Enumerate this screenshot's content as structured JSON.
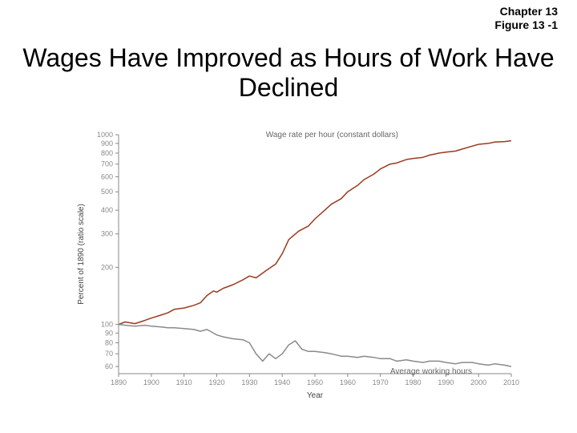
{
  "header": {
    "chapter": "Chapter 13",
    "figure": "Figure 13 -1"
  },
  "title": "Wages Have Improved as Hours of Work Have Declined",
  "chart": {
    "type": "line",
    "background_color": "#ffffff",
    "axis_color": "#888888",
    "tick_color": "#888888",
    "tick_font_size": 9,
    "xlabel": "Year",
    "ylabel": "Percent of 1890 (ratio scale)",
    "xlim": [
      1890,
      2010
    ],
    "xticks": [
      1890,
      1900,
      1910,
      1920,
      1930,
      1940,
      1950,
      1960,
      1970,
      1980,
      1990,
      2000,
      2010
    ],
    "yticks": [
      60,
      70,
      80,
      90,
      100,
      200,
      300,
      400,
      500,
      600,
      700,
      800,
      900,
      1000
    ],
    "ylim_log": [
      55,
      1000
    ],
    "series": [
      {
        "name": "Wage rate per hour (constant dollars)",
        "label_xy": [
          1935,
          970
        ],
        "color": "#9a3a1f",
        "line_width": 1.5,
        "data": [
          [
            1890,
            100
          ],
          [
            1892,
            103
          ],
          [
            1895,
            101
          ],
          [
            1898,
            105
          ],
          [
            1900,
            108
          ],
          [
            1903,
            112
          ],
          [
            1905,
            115
          ],
          [
            1907,
            120
          ],
          [
            1910,
            122
          ],
          [
            1913,
            126
          ],
          [
            1915,
            130
          ],
          [
            1917,
            142
          ],
          [
            1919,
            150
          ],
          [
            1920,
            148
          ],
          [
            1922,
            155
          ],
          [
            1925,
            162
          ],
          [
            1928,
            172
          ],
          [
            1930,
            180
          ],
          [
            1932,
            176
          ],
          [
            1935,
            192
          ],
          [
            1938,
            208
          ],
          [
            1940,
            236
          ],
          [
            1942,
            280
          ],
          [
            1945,
            310
          ],
          [
            1948,
            330
          ],
          [
            1950,
            360
          ],
          [
            1953,
            400
          ],
          [
            1955,
            430
          ],
          [
            1958,
            460
          ],
          [
            1960,
            500
          ],
          [
            1963,
            540
          ],
          [
            1965,
            580
          ],
          [
            1968,
            620
          ],
          [
            1970,
            660
          ],
          [
            1973,
            700
          ],
          [
            1975,
            710
          ],
          [
            1978,
            740
          ],
          [
            1980,
            750
          ],
          [
            1983,
            760
          ],
          [
            1985,
            780
          ],
          [
            1988,
            800
          ],
          [
            1990,
            810
          ],
          [
            1993,
            820
          ],
          [
            1995,
            840
          ],
          [
            1998,
            870
          ],
          [
            2000,
            890
          ],
          [
            2003,
            900
          ],
          [
            2005,
            915
          ],
          [
            2008,
            920
          ],
          [
            2010,
            930
          ]
        ]
      },
      {
        "name": "Average working hours",
        "label_xy": [
          1973,
          55
        ],
        "color": "#8a8a8a",
        "line_width": 1.5,
        "data": [
          [
            1890,
            100
          ],
          [
            1892,
            99
          ],
          [
            1895,
            98
          ],
          [
            1898,
            99
          ],
          [
            1900,
            98
          ],
          [
            1903,
            97
          ],
          [
            1905,
            96
          ],
          [
            1907,
            96
          ],
          [
            1910,
            95
          ],
          [
            1913,
            94
          ],
          [
            1915,
            92
          ],
          [
            1917,
            94
          ],
          [
            1919,
            90
          ],
          [
            1920,
            88
          ],
          [
            1922,
            86
          ],
          [
            1925,
            84
          ],
          [
            1928,
            83
          ],
          [
            1930,
            80
          ],
          [
            1932,
            70
          ],
          [
            1934,
            64
          ],
          [
            1936,
            70
          ],
          [
            1938,
            66
          ],
          [
            1940,
            70
          ],
          [
            1942,
            78
          ],
          [
            1944,
            82
          ],
          [
            1946,
            74
          ],
          [
            1948,
            72
          ],
          [
            1950,
            72
          ],
          [
            1953,
            71
          ],
          [
            1955,
            70
          ],
          [
            1958,
            68
          ],
          [
            1960,
            68
          ],
          [
            1963,
            67
          ],
          [
            1965,
            68
          ],
          [
            1968,
            67
          ],
          [
            1970,
            66
          ],
          [
            1973,
            66
          ],
          [
            1975,
            64
          ],
          [
            1978,
            65
          ],
          [
            1980,
            64
          ],
          [
            1983,
            63
          ],
          [
            1985,
            64
          ],
          [
            1988,
            64
          ],
          [
            1990,
            63
          ],
          [
            1993,
            62
          ],
          [
            1995,
            63
          ],
          [
            1998,
            63
          ],
          [
            2000,
            62
          ],
          [
            2003,
            61
          ],
          [
            2005,
            62
          ],
          [
            2008,
            61
          ],
          [
            2010,
            60
          ]
        ]
      }
    ]
  }
}
